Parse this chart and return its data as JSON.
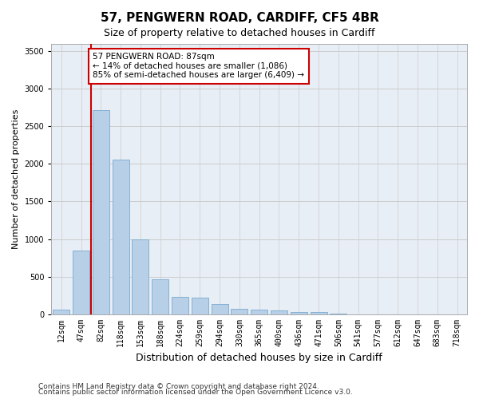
{
  "title": "57, PENGWERN ROAD, CARDIFF, CF5 4BR",
  "subtitle": "Size of property relative to detached houses in Cardiff",
  "xlabel": "Distribution of detached houses by size in Cardiff",
  "ylabel": "Number of detached properties",
  "categories": [
    "12sqm",
    "47sqm",
    "82sqm",
    "118sqm",
    "153sqm",
    "188sqm",
    "224sqm",
    "259sqm",
    "294sqm",
    "330sqm",
    "365sqm",
    "400sqm",
    "436sqm",
    "471sqm",
    "506sqm",
    "541sqm",
    "577sqm",
    "612sqm",
    "647sqm",
    "683sqm",
    "718sqm"
  ],
  "values": [
    55,
    850,
    2720,
    2060,
    1000,
    460,
    230,
    220,
    135,
    65,
    55,
    50,
    30,
    25,
    5,
    0,
    0,
    0,
    0,
    0,
    0
  ],
  "bar_color": "#b8cfe8",
  "bar_edge_color": "#7aaad0",
  "vline_x": 1.5,
  "annotation_line1": "57 PENGWERN ROAD: 87sqm",
  "annotation_line2": "← 14% of detached houses are smaller (1,086)",
  "annotation_line3": "85% of semi-detached houses are larger (6,409) →",
  "annotation_box_color": "#ffffff",
  "annotation_border_color": "#cc0000",
  "vline_color": "#cc0000",
  "ylim": [
    0,
    3600
  ],
  "yticks": [
    0,
    500,
    1000,
    1500,
    2000,
    2500,
    3000,
    3500
  ],
  "grid_color": "#cccccc",
  "bg_color": "#e8eef5",
  "footnote1": "Contains HM Land Registry data © Crown copyright and database right 2024.",
  "footnote2": "Contains public sector information licensed under the Open Government Licence v3.0.",
  "title_fontsize": 11,
  "subtitle_fontsize": 9,
  "xlabel_fontsize": 9,
  "ylabel_fontsize": 8,
  "tick_fontsize": 7,
  "annotation_fontsize": 7.5,
  "footnote_fontsize": 6.5
}
